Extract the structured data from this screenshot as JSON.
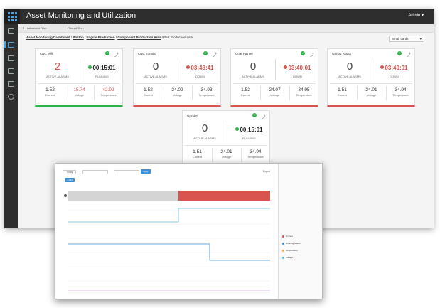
{
  "app": {
    "title": "Asset Monitoring and Utilization",
    "user": "Admin ▾"
  },
  "filters": {
    "advanced": "Advanced Filter",
    "filtered_on": "Filtered On: -"
  },
  "breadcrumb": [
    "Asset Monitoring Dashboard",
    "Boston",
    "Engine Production",
    "Component Production Area",
    "Part Production Line"
  ],
  "view_select": {
    "value": "Small cards",
    "arrow": "▾"
  },
  "labels": {
    "active_alarms": "ACTIVE ALARMS",
    "current": "Current",
    "voltage": "Voltage",
    "temperature": "Temperature",
    "check": "✓",
    "trend": "⤴"
  },
  "cards": [
    {
      "name": "CNC Mill",
      "alarms": "2",
      "time": "00:15:01",
      "state": "RUNNING",
      "current": "1.52",
      "voltage": "15.74",
      "temperature": "42.92"
    },
    {
      "name": "CNC Turning",
      "alarms": "0",
      "time": "03:48:41",
      "state": "DOWN",
      "current": "1.52",
      "voltage": "24.09",
      "temperature": "34.93"
    },
    {
      "name": "Coat Painter",
      "alarms": "0",
      "time": "03:40:01",
      "state": "DOWN",
      "current": "1.52",
      "voltage": "24.07",
      "temperature": "34.95"
    },
    {
      "name": "Gentry Robot",
      "alarms": "0",
      "time": "03:40:01",
      "state": "DOWN",
      "current": "1.51",
      "voltage": "24.01",
      "temperature": "34.94"
    },
    {
      "name": "Grinder",
      "alarms": "0",
      "time": "00:15:01",
      "state": "RUNNING",
      "current": "1.51",
      "voltage": "24.01",
      "temperature": "34.94"
    }
  ],
  "colors": {
    "running": "#2db34a",
    "down": "#d9534f",
    "accent": "#4aa3df",
    "current_line": "#5bc0de",
    "voltage_line": "#3b8fd6"
  },
  "overlay": {
    "range": "Today",
    "apply": "Apply",
    "export": "Export",
    "add": "+ Add",
    "legend": [
      "Current",
      "Running Status",
      "Temperature",
      "Voltage"
    ],
    "legend_colors": [
      "#d9534f",
      "#3b8fd6",
      "#f0ad4e",
      "#5bc0de"
    ]
  }
}
